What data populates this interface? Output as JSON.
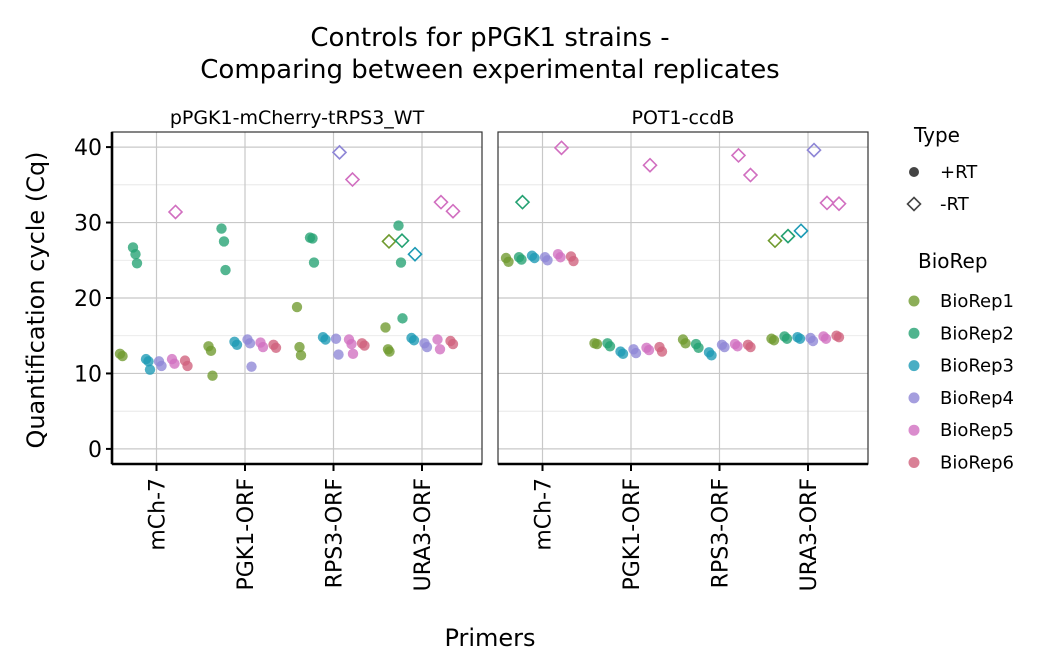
{
  "chart_data": {
    "type": "scatter",
    "title": "Controls for pPGK1 strains -\nComparing between experimental replicates",
    "xlabel": "Primers",
    "ylabel": "Quantification cycle (Cq)",
    "ylim": [
      -2,
      42
    ],
    "yticks": [
      0,
      10,
      20,
      30,
      40
    ],
    "grid": true,
    "legend_position": "right",
    "categories": [
      "mCh-7",
      "PGK1-ORF",
      "RPS3-ORF",
      "URA3-ORF"
    ],
    "legend": {
      "type_title": "Type",
      "types": [
        "+RT",
        "-RT"
      ],
      "biorep_title": "BioRep",
      "bioreps": [
        "BioRep1",
        "BioRep2",
        "BioRep3",
        "BioRep4",
        "BioRep5",
        "BioRep6"
      ]
    },
    "colors": {
      "BioRep1": "#6f9a2e",
      "BioRep2": "#24a172",
      "BioRep3": "#1c9ab5",
      "BioRep4": "#8e86d6",
      "BioRep5": "#d16fc0",
      "BioRep6": "#d0607c"
    },
    "facets": [
      {
        "name": "pPGK1-mCherry-tRPS3_WT",
        "series": [
          {
            "name": "BioRep1",
            "rt": {
              "mCh-7": [
                12.6,
                12.3
              ],
              "PGK1-ORF": [
                13.6,
                13.0,
                9.7
              ],
              "RPS3-ORF": [
                18.8,
                13.5,
                12.4
              ],
              "URA3-ORF": [
                16.1,
                13.2,
                12.9
              ]
            },
            "nort": {
              "mCh-7": [],
              "PGK1-ORF": [],
              "RPS3-ORF": [],
              "URA3-ORF": [
                27.5
              ]
            }
          },
          {
            "name": "BioRep2",
            "rt": {
              "mCh-7": [
                26.7,
                25.8,
                24.6
              ],
              "PGK1-ORF": [
                29.2,
                27.5,
                23.7
              ],
              "RPS3-ORF": [
                28.0,
                27.9,
                24.7
              ],
              "URA3-ORF": [
                29.6,
                24.7,
                17.3
              ]
            },
            "nort": {
              "mCh-7": [],
              "PGK1-ORF": [],
              "RPS3-ORF": [],
              "URA3-ORF": [
                27.6
              ]
            }
          },
          {
            "name": "BioRep3",
            "rt": {
              "mCh-7": [
                11.9,
                11.6,
                10.5
              ],
              "PGK1-ORF": [
                14.2,
                13.8
              ],
              "RPS3-ORF": [
                14.8,
                14.5
              ],
              "URA3-ORF": [
                14.7,
                14.4
              ]
            },
            "nort": {
              "mCh-7": [],
              "PGK1-ORF": [],
              "RPS3-ORF": [],
              "URA3-ORF": [
                25.8
              ]
            }
          },
          {
            "name": "BioRep4",
            "rt": {
              "mCh-7": [
                11.6,
                11.0
              ],
              "PGK1-ORF": [
                14.5,
                14.0,
                10.9
              ],
              "RPS3-ORF": [
                14.6,
                12.5
              ],
              "URA3-ORF": [
                14.0,
                13.5
              ]
            },
            "nort": {
              "mCh-7": [],
              "PGK1-ORF": [],
              "RPS3-ORF": [
                39.3
              ],
              "URA3-ORF": []
            }
          },
          {
            "name": "BioRep5",
            "rt": {
              "mCh-7": [
                11.9,
                11.3
              ],
              "PGK1-ORF": [
                14.1,
                13.5
              ],
              "RPS3-ORF": [
                14.5,
                13.9,
                12.6
              ],
              "URA3-ORF": [
                14.5,
                13.2
              ]
            },
            "nort": {
              "mCh-7": [
                31.4
              ],
              "PGK1-ORF": [],
              "RPS3-ORF": [
                35.7
              ],
              "URA3-ORF": [
                32.7,
                31.5
              ]
            }
          },
          {
            "name": "BioRep6",
            "rt": {
              "mCh-7": [
                11.7,
                11.0
              ],
              "PGK1-ORF": [
                13.8,
                13.4
              ],
              "RPS3-ORF": [
                14.0,
                13.7
              ],
              "URA3-ORF": [
                14.3,
                13.9
              ]
            },
            "nort": {
              "mCh-7": [],
              "PGK1-ORF": [],
              "RPS3-ORF": [],
              "URA3-ORF": []
            }
          }
        ]
      },
      {
        "name": "POT1-ccdB",
        "series": [
          {
            "name": "BioRep1",
            "rt": {
              "mCh-7": [
                25.3,
                24.8
              ],
              "PGK1-ORF": [
                14.0,
                13.9
              ],
              "RPS3-ORF": [
                14.5,
                14.0
              ],
              "URA3-ORF": [
                14.6,
                14.4
              ]
            },
            "nort": {
              "mCh-7": [],
              "PGK1-ORF": [],
              "RPS3-ORF": [],
              "URA3-ORF": [
                27.6
              ]
            }
          },
          {
            "name": "BioRep2",
            "rt": {
              "mCh-7": [
                25.4,
                25.1
              ],
              "PGK1-ORF": [
                14.0,
                13.6
              ],
              "RPS3-ORF": [
                13.9,
                13.4
              ],
              "URA3-ORF": [
                14.9,
                14.6
              ]
            },
            "nort": {
              "mCh-7": [
                32.7
              ],
              "PGK1-ORF": [],
              "RPS3-ORF": [],
              "URA3-ORF": [
                28.2
              ]
            }
          },
          {
            "name": "BioRep3",
            "rt": {
              "mCh-7": [
                25.6,
                25.3
              ],
              "PGK1-ORF": [
                12.9,
                12.6
              ],
              "RPS3-ORF": [
                12.8,
                12.4
              ],
              "URA3-ORF": [
                14.8,
                14.6
              ]
            },
            "nort": {
              "mCh-7": [],
              "PGK1-ORF": [],
              "RPS3-ORF": [],
              "URA3-ORF": [
                28.9
              ]
            }
          },
          {
            "name": "BioRep4",
            "rt": {
              "mCh-7": [
                25.4,
                25.0
              ],
              "PGK1-ORF": [
                13.2,
                12.7
              ],
              "RPS3-ORF": [
                13.8,
                13.5
              ],
              "URA3-ORF": [
                14.7,
                14.3
              ]
            },
            "nort": {
              "mCh-7": [],
              "PGK1-ORF": [],
              "RPS3-ORF": [],
              "URA3-ORF": [
                39.6
              ]
            }
          },
          {
            "name": "BioRep5",
            "rt": {
              "mCh-7": [
                25.8,
                25.4
              ],
              "PGK1-ORF": [
                13.4,
                13.1
              ],
              "RPS3-ORF": [
                13.9,
                13.6
              ],
              "URA3-ORF": [
                14.9,
                14.6
              ]
            },
            "nort": {
              "mCh-7": [
                39.9
              ],
              "PGK1-ORF": [
                37.6
              ],
              "RPS3-ORF": [
                38.9,
                36.3
              ],
              "URA3-ORF": [
                32.6,
                32.5
              ]
            }
          },
          {
            "name": "BioRep6",
            "rt": {
              "mCh-7": [
                25.5,
                24.9
              ],
              "PGK1-ORF": [
                13.5,
                12.9
              ],
              "RPS3-ORF": [
                13.8,
                13.5
              ],
              "URA3-ORF": [
                15.0,
                14.8
              ]
            },
            "nort": {
              "mCh-7": [],
              "PGK1-ORF": [],
              "RPS3-ORF": [],
              "URA3-ORF": []
            }
          }
        ]
      }
    ]
  }
}
